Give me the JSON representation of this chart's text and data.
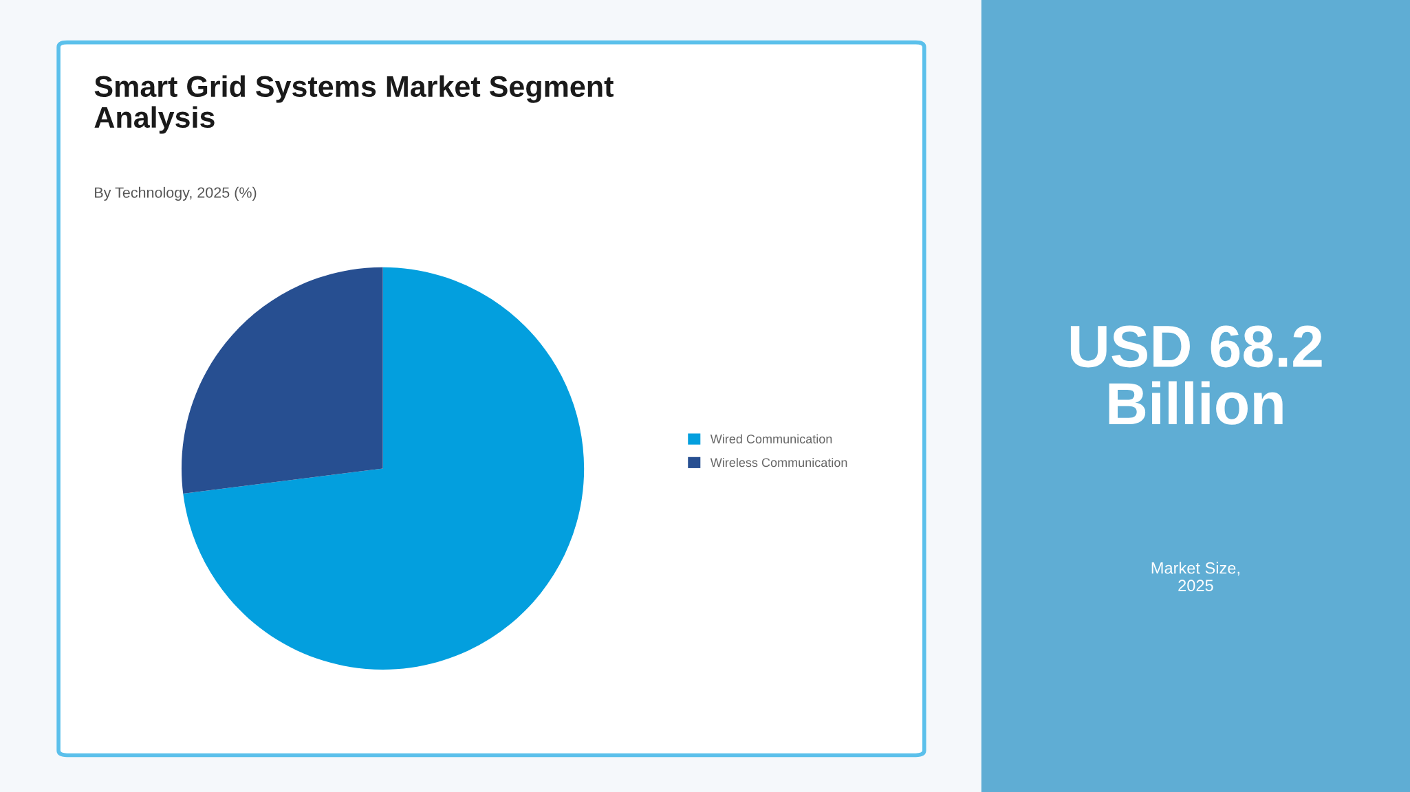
{
  "chart_data": {
    "type": "pie",
    "title": "Smart Grid Systems Market Segment Analysis",
    "subtitle": "By Technology, 2025 (%)",
    "categories": [
      "Wired Communication",
      "Wireless Communication"
    ],
    "values": [
      73,
      27
    ],
    "colors": [
      "#039fde",
      "#274f91"
    ],
    "legend": "right",
    "annotations": [
      "USD 68.2\nBillion",
      "Market Size,\n2025"
    ]
  }
}
